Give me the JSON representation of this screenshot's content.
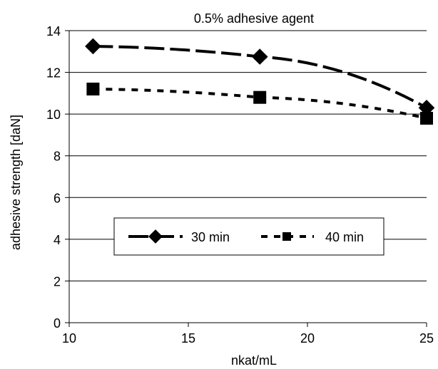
{
  "chart_data": {
    "type": "line",
    "title": "0.5% adhesive agent",
    "xlabel": "nkat/mL",
    "ylabel": "adhesive strength [daN]",
    "xlim": [
      10,
      25
    ],
    "ylim": [
      0,
      14
    ],
    "x_ticks": [
      10,
      15,
      20,
      25
    ],
    "y_ticks": [
      0,
      2,
      4,
      6,
      8,
      10,
      12,
      14
    ],
    "grid": "horizontal",
    "legend_position": "center-bottom",
    "series": [
      {
        "name": "30 min",
        "x": [
          11,
          18,
          25
        ],
        "y": [
          13.25,
          12.75,
          10.3
        ],
        "marker": "diamond",
        "line_style": "long-dash",
        "color": "#000000"
      },
      {
        "name": "40 min",
        "x": [
          11,
          18,
          25
        ],
        "y": [
          11.2,
          10.8,
          9.8
        ],
        "marker": "square",
        "line_style": "short-dash",
        "color": "#000000"
      }
    ]
  }
}
